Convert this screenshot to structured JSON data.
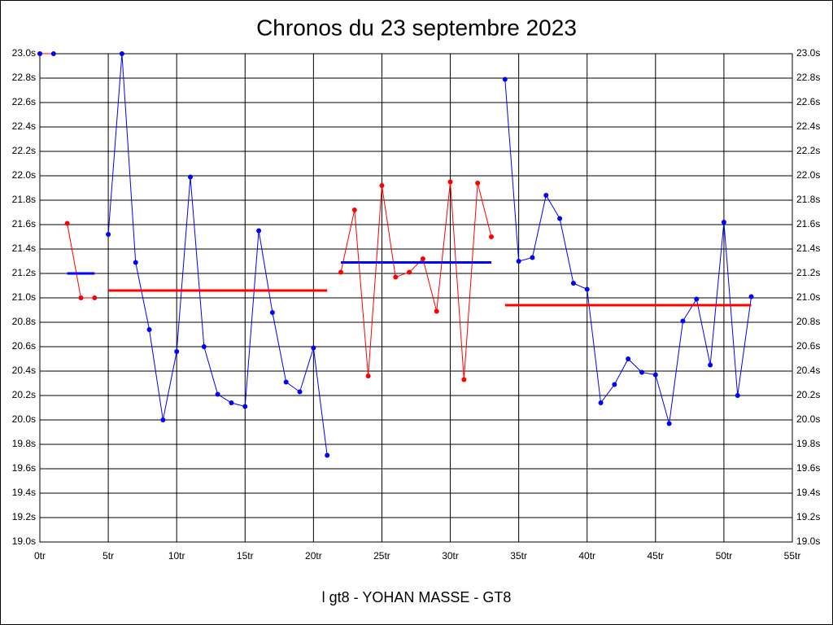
{
  "chart_data": {
    "type": "line",
    "title": "Chronos du 23 septembre 2023",
    "xlabel": "l gt8 - YOHAN MASSE - GT8",
    "xlim": [
      0,
      55
    ],
    "ylim": [
      19.0,
      23.0
    ],
    "grid": true,
    "xticks": [
      {
        "value": 0,
        "label": "0tr"
      },
      {
        "value": 5,
        "label": "5tr"
      },
      {
        "value": 10,
        "label": "10tr"
      },
      {
        "value": 15,
        "label": "15tr"
      },
      {
        "value": 20,
        "label": "20tr"
      },
      {
        "value": 25,
        "label": "25tr"
      },
      {
        "value": 30,
        "label": "30tr"
      },
      {
        "value": 35,
        "label": "35tr"
      },
      {
        "value": 40,
        "label": "40tr"
      },
      {
        "value": 45,
        "label": "45tr"
      },
      {
        "value": 50,
        "label": "50tr"
      },
      {
        "value": 55,
        "label": "55tr"
      }
    ],
    "yticks": [
      {
        "value": 19.0,
        "label": "19.0s"
      },
      {
        "value": 19.2,
        "label": "19.2s"
      },
      {
        "value": 19.4,
        "label": "19.4s"
      },
      {
        "value": 19.6,
        "label": "19.6s"
      },
      {
        "value": 19.8,
        "label": "19.8s"
      },
      {
        "value": 20.0,
        "label": "20.0s"
      },
      {
        "value": 20.2,
        "label": "20.2s"
      },
      {
        "value": 20.4,
        "label": "20.4s"
      },
      {
        "value": 20.6,
        "label": "20.6s"
      },
      {
        "value": 20.8,
        "label": "20.8s"
      },
      {
        "value": 21.0,
        "label": "21.0s"
      },
      {
        "value": 21.2,
        "label": "21.2s"
      },
      {
        "value": 21.4,
        "label": "21.4s"
      },
      {
        "value": 21.6,
        "label": "21.6s"
      },
      {
        "value": 21.8,
        "label": "21.8s"
      },
      {
        "value": 22.0,
        "label": "22.0s"
      },
      {
        "value": 22.2,
        "label": "22.2s"
      },
      {
        "value": 22.4,
        "label": "22.4s"
      },
      {
        "value": 22.6,
        "label": "22.6s"
      },
      {
        "value": 22.8,
        "label": "22.8s"
      },
      {
        "value": 23.0,
        "label": "23.0s"
      }
    ],
    "series": [
      {
        "color": "#ff0000",
        "marker_color": "#0000ff",
        "x": [
          0,
          1
        ],
        "values": [
          23.0,
          23.0
        ]
      },
      {
        "color": "#ff0000",
        "marker_color": "#ff0000",
        "x": [
          2,
          3,
          4
        ],
        "values": [
          21.61,
          21.0,
          21.0
        ]
      },
      {
        "color": "#0000ff",
        "marker_color": "#0000ff",
        "x": [
          5,
          6,
          7,
          8,
          9,
          10,
          11,
          12,
          13,
          14,
          15,
          16,
          17,
          18,
          19,
          20,
          21
        ],
        "values": [
          21.52,
          23.0,
          21.29,
          20.74,
          20.0,
          20.56,
          21.99,
          20.6,
          20.21,
          20.14,
          20.11,
          21.55,
          20.88,
          20.31,
          20.23,
          20.59,
          19.71
        ]
      },
      {
        "color": "#ff0000",
        "marker_color": "#ff0000",
        "x": [
          22,
          23,
          24,
          25,
          26,
          27,
          28,
          29,
          30,
          31,
          32,
          33
        ],
        "values": [
          21.21,
          21.72,
          20.36,
          21.92,
          21.17,
          21.21,
          21.32,
          20.89,
          21.95,
          20.33,
          21.94,
          21.5
        ]
      },
      {
        "color": "#0000ff",
        "marker_color": "#0000ff",
        "x": [
          34,
          35,
          36,
          37,
          38,
          39,
          40,
          41,
          42,
          43,
          44,
          45,
          46,
          47,
          48,
          49,
          50,
          51,
          52
        ],
        "values": [
          22.79,
          21.3,
          21.33,
          21.84,
          21.65,
          21.12,
          21.07,
          20.14,
          20.29,
          20.5,
          20.39,
          20.37,
          19.97,
          20.81,
          20.99,
          20.45,
          21.62,
          20.2,
          21.01
        ]
      }
    ],
    "averages": [
      {
        "color": "#0000ff",
        "from": 2,
        "to": 4,
        "value": 21.2
      },
      {
        "color": "#ff0000",
        "from": 5,
        "to": 21,
        "value": 21.06
      },
      {
        "color": "#0000ff",
        "from": 22,
        "to": 33,
        "value": 21.29
      },
      {
        "color": "#ff0000",
        "from": 34,
        "to": 52,
        "value": 20.94
      }
    ]
  }
}
